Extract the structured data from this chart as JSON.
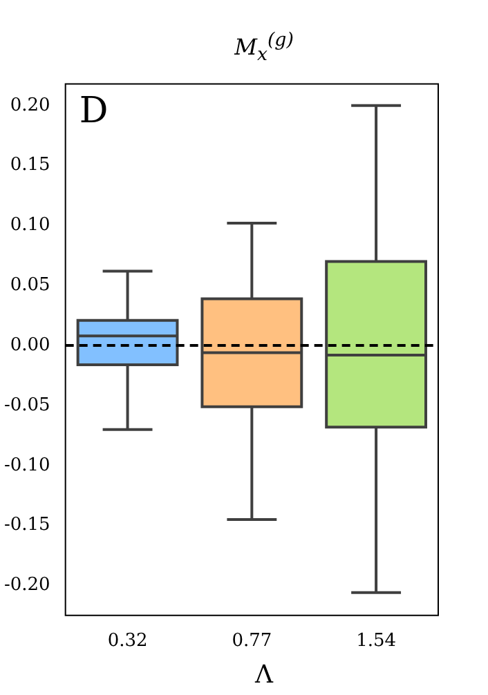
{
  "chart_data": {
    "type": "box",
    "title": "M$_{x}$$^{(g)}$",
    "xlabel": "Λ",
    "categories": [
      "0.32",
      "0.77",
      "1.54"
    ],
    "boxes": [
      {
        "low": -0.07,
        "q1": -0.016,
        "median": 0.008,
        "q3": 0.021,
        "high": 0.062
      },
      {
        "low": -0.145,
        "q1": -0.051,
        "median": -0.006,
        "q3": 0.039,
        "high": 0.102
      },
      {
        "low": -0.206,
        "q1": -0.068,
        "median": -0.008,
        "q3": 0.07,
        "high": 0.2
      }
    ],
    "colors": [
      "#82c0ff",
      "#ffc080",
      "#b4e67e"
    ],
    "ylim": [
      -0.225,
      0.218
    ],
    "yticks": [
      {
        "value": -0.2,
        "label": "-0.20"
      },
      {
        "value": -0.15,
        "label": "-0.15"
      },
      {
        "value": -0.1,
        "label": "-0.10"
      },
      {
        "value": -0.05,
        "label": "-0.05"
      },
      {
        "value": 0,
        "label": "0.00"
      },
      {
        "value": 0.05,
        "label": "0.05"
      },
      {
        "value": 0.1,
        "label": "0.10"
      },
      {
        "value": 0.15,
        "label": "0.15"
      },
      {
        "value": 0.2,
        "label": "0.20"
      }
    ],
    "ref_lines": [
      {
        "axis": "y",
        "value": 0,
        "color": "#000000",
        "line_style": "dashed"
      }
    ],
    "annotations": [
      "D"
    ]
  }
}
